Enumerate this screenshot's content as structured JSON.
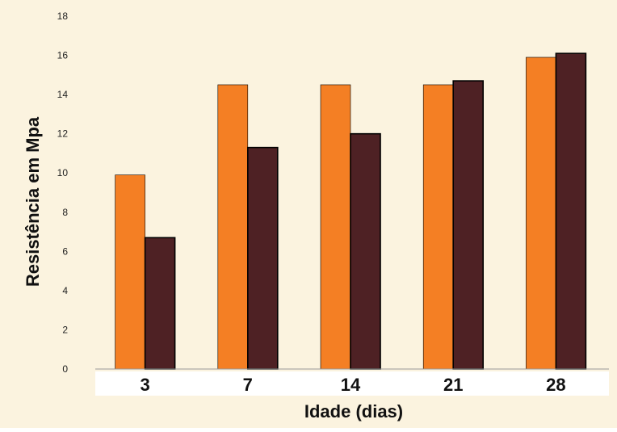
{
  "chart_data": {
    "type": "bar",
    "title": "",
    "xlabel": "Idade (dias)",
    "ylabel": "Resistência em Mpa",
    "categories": [
      "3",
      "7",
      "14",
      "21",
      "28"
    ],
    "series": [
      {
        "values": [
          9.9,
          14.5,
          14.5,
          14.5,
          15.9
        ],
        "color": "#F47F24"
      },
      {
        "values": [
          6.7,
          11.3,
          12.0,
          14.7,
          16.1
        ],
        "color": "#4E2124"
      }
    ],
    "ylim": [
      0,
      18
    ],
    "yticks": [
      0,
      2,
      4,
      6,
      8,
      10,
      12,
      14,
      16,
      18
    ],
    "grid": false,
    "legend": "none",
    "colors": {
      "plot_background": "#FBF3DF",
      "axis_band": "#FFFFFF",
      "bar_outline": "#000000"
    }
  }
}
